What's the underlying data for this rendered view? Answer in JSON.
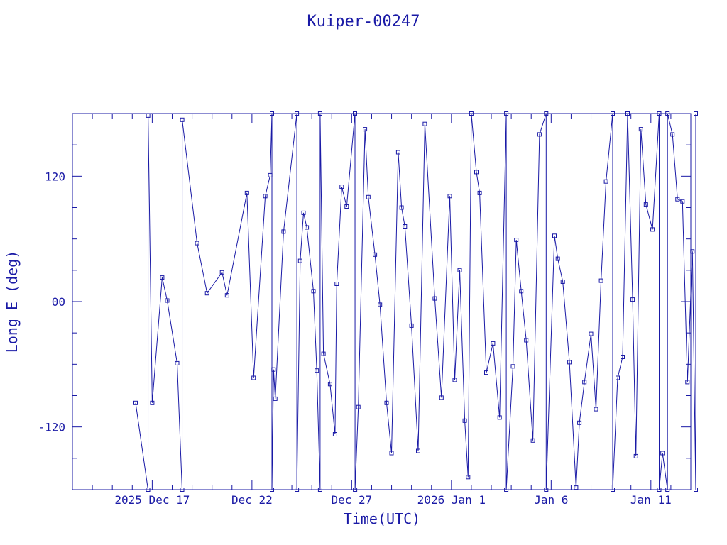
{
  "chart_data": {
    "type": "line",
    "title": "Kuiper-00247",
    "xlabel": "Time(UTC)",
    "ylabel": "Long E (deg)",
    "xlim": [
      "2025-12-13",
      "2026-01-13"
    ],
    "ylim": [
      -180,
      180
    ],
    "y_ticks": [
      -120,
      0,
      120
    ],
    "y_tick_labels": [
      "-120",
      "00",
      "120"
    ],
    "x_ticks": [
      "2025-12-17",
      "2025-12-22",
      "2025-12-27",
      "2026-01-01",
      "2026-01-06",
      "2026-01-11"
    ],
    "x_tick_labels": [
      "2025 Dec 17",
      "Dec 22",
      "Dec 27",
      "2026 Jan  1",
      "Jan  6",
      "Jan 11"
    ],
    "grid": false,
    "color": "#1a1aa6",
    "series": [
      {
        "points": [
          [
            "2025-12-16 04:00",
            -97
          ],
          [
            "2025-12-16 19:00",
            -180
          ],
          [
            "2025-12-16 19:01",
            178
          ],
          [
            "2025-12-17 00:00",
            -97
          ],
          [
            "2025-12-17 12:00",
            23
          ],
          [
            "2025-12-17 18:00",
            1
          ],
          [
            "2025-12-18 06:00",
            -59
          ],
          [
            "2025-12-18 12:00",
            -180
          ],
          [
            "2025-12-18 12:01",
            174
          ],
          [
            "2025-12-19 06:00",
            56
          ],
          [
            "2025-12-19 18:00",
            8
          ],
          [
            "2025-12-20 12:00",
            28
          ],
          [
            "2025-12-20 18:00",
            6
          ],
          [
            "2025-12-21 18:00",
            104
          ],
          [
            "2025-12-22 02:00",
            -73
          ],
          [
            "2025-12-22 16:00",
            101
          ],
          [
            "2025-12-22 22:00",
            121
          ],
          [
            "2025-12-23 00:00",
            180
          ],
          [
            "2025-12-23 00:01",
            -180
          ],
          [
            "2025-12-23 02:00",
            -65
          ],
          [
            "2025-12-23 04:00",
            -93
          ],
          [
            "2025-12-23 14:00",
            67
          ],
          [
            "2025-12-24 06:00",
            180
          ],
          [
            "2025-12-24 06:01",
            -180
          ],
          [
            "2025-12-24 10:00",
            39
          ],
          [
            "2025-12-24 14:00",
            85
          ],
          [
            "2025-12-24 18:00",
            71
          ],
          [
            "2025-12-25 02:00",
            10
          ],
          [
            "2025-12-25 06:00",
            -66
          ],
          [
            "2025-12-25 10:00",
            -180
          ],
          [
            "2025-12-25 10:01",
            180
          ],
          [
            "2025-12-25 14:00",
            -50
          ],
          [
            "2025-12-25 22:00",
            -79
          ],
          [
            "2025-12-26 04:00",
            -127
          ],
          [
            "2025-12-26 06:00",
            17
          ],
          [
            "2025-12-26 12:00",
            110
          ],
          [
            "2025-12-26 18:00",
            91
          ],
          [
            "2025-12-27 04:00",
            180
          ],
          [
            "2025-12-27 04:01",
            -180
          ],
          [
            "2025-12-27 08:00",
            -101
          ],
          [
            "2025-12-27 16:00",
            165
          ],
          [
            "2025-12-27 20:00",
            100
          ],
          [
            "2025-12-28 04:00",
            45
          ],
          [
            "2025-12-28 10:00",
            -3
          ],
          [
            "2025-12-28 18:00",
            -97
          ],
          [
            "2025-12-29 00:00",
            -145
          ],
          [
            "2025-12-29 08:00",
            143
          ],
          [
            "2025-12-29 12:00",
            90
          ],
          [
            "2025-12-29 16:00",
            72
          ],
          [
            "2025-12-30 00:00",
            -23
          ],
          [
            "2025-12-30 08:00",
            -143
          ],
          [
            "2025-12-30 16:00",
            170
          ],
          [
            "2025-12-31 04:00",
            3
          ],
          [
            "2025-12-31 12:00",
            -92
          ],
          [
            "2025-12-31 22:00",
            101
          ],
          [
            "2026-01-01 04:00",
            -75
          ],
          [
            "2026-01-01 10:00",
            30
          ],
          [
            "2026-01-01 16:00",
            -114
          ],
          [
            "2026-01-01 20:00",
            -168
          ],
          [
            "2026-01-02 00:00",
            180
          ],
          [
            "2026-01-02 06:00",
            124
          ],
          [
            "2026-01-02 10:00",
            104
          ],
          [
            "2026-01-02 18:00",
            -68
          ],
          [
            "2026-01-03 02:00",
            -40
          ],
          [
            "2026-01-03 10:00",
            -111
          ],
          [
            "2026-01-03 18:00",
            180
          ],
          [
            "2026-01-03 18:01",
            -180
          ],
          [
            "2026-01-04 02:00",
            -62
          ],
          [
            "2026-01-04 06:00",
            59
          ],
          [
            "2026-01-04 12:00",
            10
          ],
          [
            "2026-01-04 18:00",
            -37
          ],
          [
            "2026-01-05 02:00",
            -133
          ],
          [
            "2026-01-05 10:00",
            160
          ],
          [
            "2026-01-05 18:00",
            180
          ],
          [
            "2026-01-05 18:01",
            -180
          ],
          [
            "2026-01-06 04:00",
            63
          ],
          [
            "2026-01-06 08:00",
            41
          ],
          [
            "2026-01-06 14:00",
            19
          ],
          [
            "2026-01-06 22:00",
            -58
          ],
          [
            "2026-01-07 06:00",
            -178
          ],
          [
            "2026-01-07 10:00",
            -116
          ],
          [
            "2026-01-07 16:00",
            -77
          ],
          [
            "2026-01-08 00:00",
            -31
          ],
          [
            "2026-01-08 06:00",
            -103
          ],
          [
            "2026-01-08 12:00",
            20
          ],
          [
            "2026-01-08 18:00",
            115
          ],
          [
            "2026-01-09 02:00",
            180
          ],
          [
            "2026-01-09 02:01",
            -180
          ],
          [
            "2026-01-09 08:00",
            -73
          ],
          [
            "2026-01-09 14:00",
            -53
          ],
          [
            "2026-01-09 20:00",
            180
          ],
          [
            "2026-01-10 02:00",
            2
          ],
          [
            "2026-01-10 06:00",
            -148
          ],
          [
            "2026-01-10 12:00",
            165
          ],
          [
            "2026-01-10 18:00",
            93
          ],
          [
            "2026-01-11 02:00",
            69
          ],
          [
            "2026-01-11 10:00",
            180
          ],
          [
            "2026-01-11 10:01",
            -180
          ],
          [
            "2026-01-11 14:00",
            -145
          ],
          [
            "2026-01-11 20:00",
            -180
          ],
          [
            "2026-01-11 20:01",
            180
          ],
          [
            "2026-01-12 02:00",
            160
          ],
          [
            "2026-01-12 08:00",
            98
          ],
          [
            "2026-01-12 14:00",
            96
          ],
          [
            "2026-01-12 20:00",
            -77
          ],
          [
            "2026-01-13 02:00",
            48
          ],
          [
            "2026-01-13 06:00",
            -180
          ],
          [
            "2026-01-13 06:01",
            180
          ]
        ]
      }
    ]
  }
}
